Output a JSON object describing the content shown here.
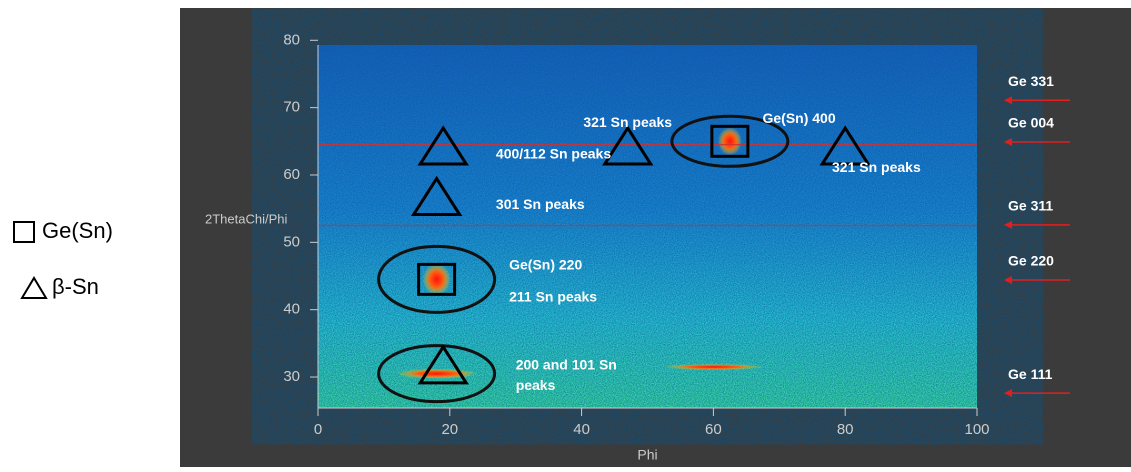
{
  "chart_data": {
    "type": "scatter",
    "xlabel": "Phi",
    "ylabel": "2ThetaChi/Phi",
    "xlim": [
      0,
      100
    ],
    "xticks": [
      0,
      20,
      40,
      60,
      80,
      100
    ],
    "ylim": [
      25.4,
      79.3
    ],
    "yticks": [
      30,
      40,
      50,
      60,
      70,
      80
    ],
    "series": [
      {
        "name": "Ge(Sn)",
        "marker": "square",
        "color": "#000000",
        "x": [
          18,
          62.5
        ],
        "y": [
          44.5,
          65
        ]
      },
      {
        "name": "β-Sn",
        "marker": "triangle",
        "color": "#000000",
        "x": [
          19,
          18,
          47,
          80,
          19
        ],
        "y": [
          64,
          56.5,
          64,
          64,
          31.5
        ]
      }
    ],
    "hlines": [
      64.5,
      52.5
    ],
    "hline_color": "#d03030",
    "annotations": [
      "321 Sn peaks",
      "Ge(Sn) 400",
      "400/112 Sn peaks",
      "321 Sn peaks",
      "301 Sn peaks",
      "Ge(Sn) 220",
      "211 Sn peaks",
      "200 and 101 Sn",
      "peaks"
    ],
    "reflections": {
      "labels": [
        "Ge 331",
        "Ge 004",
        "Ge 311",
        "Ge 220",
        "Ge 111"
      ],
      "y": [
        71.1,
        64.9,
        52.6,
        44.4,
        27.6
      ],
      "color": "#e02020"
    }
  }
}
